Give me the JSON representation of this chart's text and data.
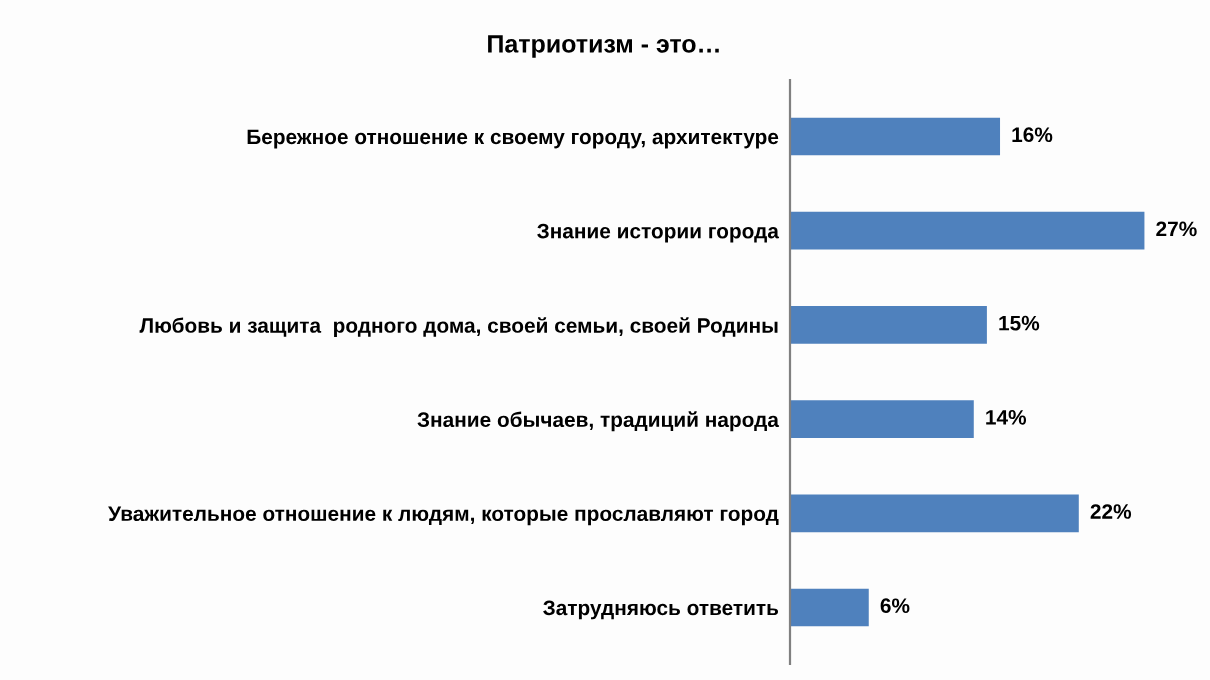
{
  "chart_data": {
    "type": "bar",
    "orientation": "horizontal",
    "title": "Патриотизм - это…",
    "categories": [
      "Бережное отношение к своему городу, архитектуре",
      "Знание истории города",
      "Любовь и защита  родного дома, своей семьи, своей Родины",
      "Знание обычаев, традиций народа",
      "Уважительное отношение к людям, которые прославляют город",
      "Затрудняюсь ответить"
    ],
    "values": [
      16,
      27,
      15,
      14,
      22,
      6
    ],
    "value_labels": [
      "16%",
      "27%",
      "15%",
      "14%",
      "22%",
      "6%"
    ],
    "color": "#4f81bd",
    "grid": false,
    "legend": false
  }
}
